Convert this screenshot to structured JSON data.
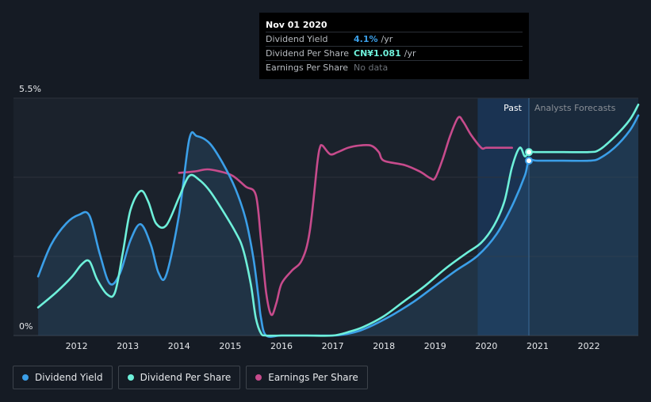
{
  "tooltip": {
    "date": "Nov 01 2020",
    "rows": [
      {
        "name": "Dividend Yield",
        "value": "4.1%",
        "unit": "/yr",
        "color": "#3b9fe8"
      },
      {
        "name": "Dividend Per Share",
        "value": "CN¥1.081",
        "unit": "/yr",
        "color": "#6ef0da"
      },
      {
        "name": "Earnings Per Share",
        "value": "No data",
        "unit": "",
        "color": "#6c7178"
      }
    ]
  },
  "chart_data": {
    "type": "line",
    "y_top_label": "5.5%",
    "y_bottom_label": "0%",
    "ylim": [
      0,
      5.5
    ],
    "xlim": [
      2011.25,
      2023.0
    ],
    "x_tick_labels": [
      "2012",
      "2013",
      "2014",
      "2015",
      "2016",
      "2017",
      "2018",
      "2019",
      "2020",
      "2021",
      "2022"
    ],
    "past_label": "Past",
    "forecast_label": "Analysts Forecasts",
    "past_region_start": 2019.83,
    "forecast_start": 2020.83,
    "grid": true,
    "series": [
      {
        "name": "Dividend Yield",
        "color": "#3b9fe8",
        "x": [
          2011.25,
          2011.5,
          2011.8,
          2012.05,
          2012.25,
          2012.45,
          2012.65,
          2012.85,
          2013.05,
          2013.25,
          2013.45,
          2013.6,
          2013.75,
          2014.0,
          2014.2,
          2014.35,
          2014.6,
          2014.85,
          2015.1,
          2015.3,
          2015.45,
          2015.55,
          2015.6,
          2015.7,
          2016.0,
          2016.5,
          2017.0,
          2017.2,
          2017.5,
          2017.8,
          2018.2,
          2018.6,
          2019.0,
          2019.4,
          2019.83,
          2020.2,
          2020.5,
          2020.75,
          2020.83,
          2021.0,
          2021.5,
          2022.0,
          2022.2,
          2022.5,
          2022.8,
          2023.0
        ],
        "y": [
          1.37,
          2.1,
          2.6,
          2.8,
          2.78,
          1.9,
          1.2,
          1.45,
          2.2,
          2.58,
          2.1,
          1.45,
          1.4,
          2.8,
          4.55,
          4.62,
          4.45,
          4.0,
          3.4,
          2.7,
          1.8,
          0.9,
          0.4,
          0.0,
          0.0,
          0.0,
          0.0,
          0.02,
          0.1,
          0.25,
          0.5,
          0.8,
          1.15,
          1.5,
          1.85,
          2.35,
          3.0,
          3.7,
          4.05,
          4.05,
          4.05,
          4.05,
          4.1,
          4.35,
          4.75,
          5.1
        ]
      },
      {
        "name": "Dividend Per Share",
        "color": "#6ef0da",
        "x": [
          2011.25,
          2011.6,
          2011.9,
          2012.1,
          2012.25,
          2012.4,
          2012.6,
          2012.75,
          2012.9,
          2013.05,
          2013.25,
          2013.4,
          2013.55,
          2013.75,
          2014.0,
          2014.2,
          2014.4,
          2014.6,
          2014.85,
          2015.1,
          2015.25,
          2015.4,
          2015.5,
          2015.6,
          2015.7,
          2016.0,
          2016.5,
          2017.0,
          2017.3,
          2017.6,
          2018.0,
          2018.4,
          2018.8,
          2019.2,
          2019.6,
          2019.9,
          2020.15,
          2020.35,
          2020.5,
          2020.65,
          2020.75,
          2020.83,
          2021.0,
          2021.5,
          2022.0,
          2022.2,
          2022.5,
          2022.8,
          2023.0
        ],
        "y": [
          0.65,
          1.0,
          1.35,
          1.65,
          1.72,
          1.3,
          0.95,
          1.0,
          1.9,
          2.9,
          3.35,
          3.1,
          2.6,
          2.55,
          3.2,
          3.7,
          3.6,
          3.35,
          2.9,
          2.4,
          2.0,
          1.2,
          0.4,
          0.05,
          0.0,
          0.0,
          0.0,
          0.0,
          0.08,
          0.2,
          0.45,
          0.8,
          1.15,
          1.55,
          1.9,
          2.15,
          2.55,
          3.1,
          3.9,
          4.35,
          4.15,
          4.25,
          4.25,
          4.25,
          4.25,
          4.3,
          4.6,
          5.0,
          5.35
        ]
      },
      {
        "name": "Earnings Per Share",
        "color": "#c74b8c",
        "x": [
          2014.0,
          2014.3,
          2014.55,
          2014.8,
          2015.05,
          2015.3,
          2015.5,
          2015.6,
          2015.7,
          2015.8,
          2015.9,
          2016.0,
          2016.2,
          2016.4,
          2016.55,
          2016.7,
          2016.75,
          2016.8,
          2016.95,
          2017.1,
          2017.3,
          2017.5,
          2017.75,
          2017.9,
          2018.0,
          2018.4,
          2018.7,
          2018.9,
          2019.0,
          2019.15,
          2019.3,
          2019.45,
          2019.55,
          2019.7,
          2019.9,
          2020.0,
          2020.25,
          2020.5
        ],
        "y": [
          3.77,
          3.8,
          3.85,
          3.8,
          3.7,
          3.45,
          3.25,
          2.2,
          1.0,
          0.48,
          0.75,
          1.2,
          1.5,
          1.75,
          2.4,
          4.0,
          4.35,
          4.4,
          4.2,
          4.25,
          4.35,
          4.4,
          4.4,
          4.25,
          4.05,
          3.95,
          3.8,
          3.65,
          3.65,
          4.1,
          4.65,
          5.05,
          4.95,
          4.65,
          4.35,
          4.35,
          4.35,
          4.35
        ]
      }
    ]
  },
  "legend": {
    "items": [
      {
        "label": "Dividend Yield",
        "color": "#3b9fe8"
      },
      {
        "label": "Dividend Per Share",
        "color": "#6ef0da"
      },
      {
        "label": "Earnings Per Share",
        "color": "#c74b8c"
      }
    ]
  }
}
